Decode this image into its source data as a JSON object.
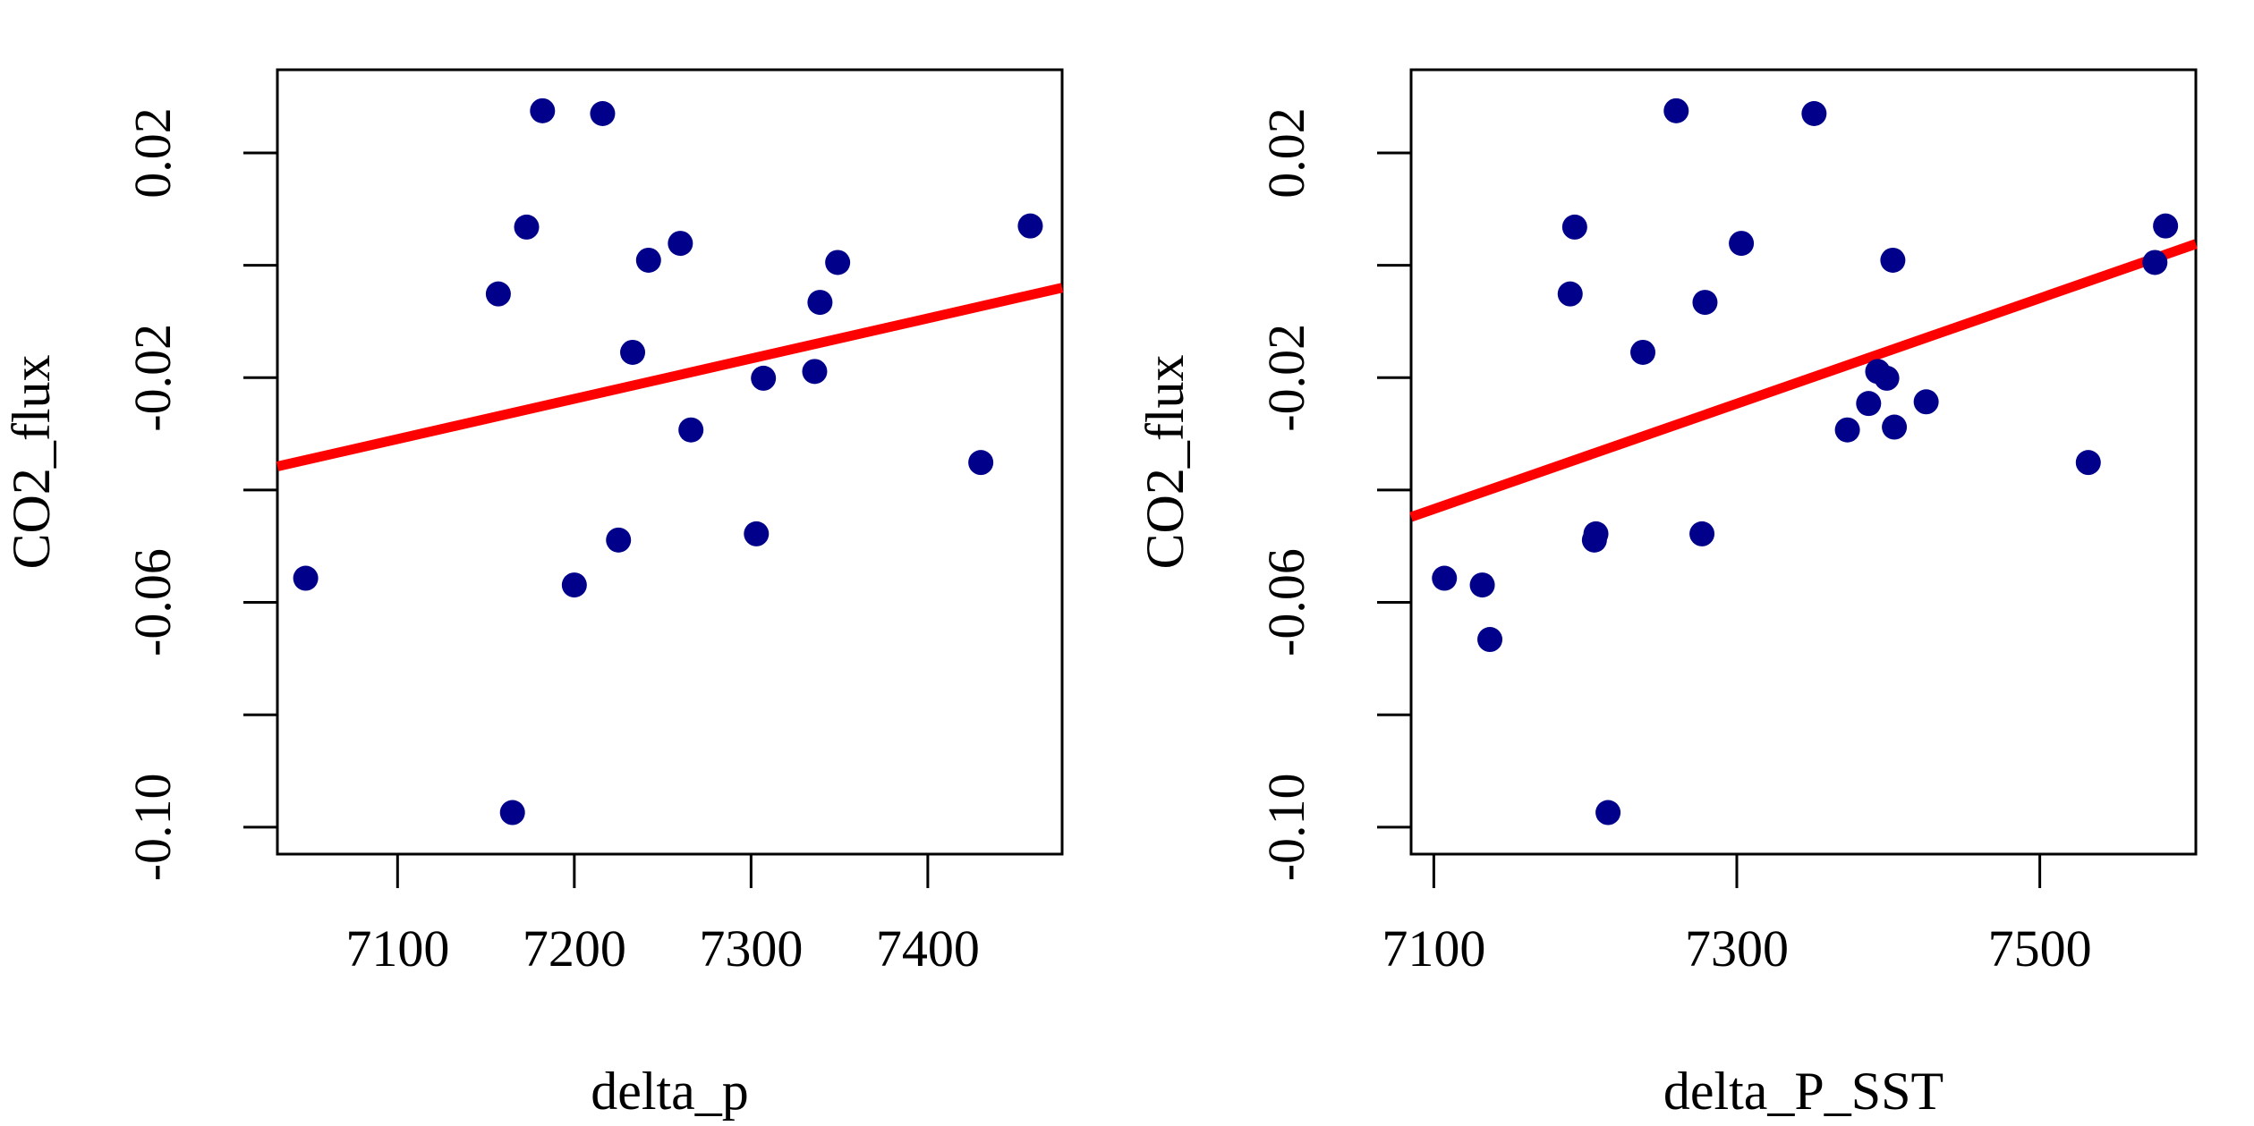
{
  "colors": {
    "points": "#00008B",
    "fit_line": "#FF0000",
    "axes": "#000000",
    "background": "#FFFFFF"
  },
  "chart_data": [
    {
      "type": "scatter",
      "title": "",
      "xlabel": "delta_p",
      "ylabel": "CO2_flux",
      "xlim": [
        7032,
        7476
      ],
      "ylim": [
        -0.1048,
        0.0348
      ],
      "x_ticks": [
        7100,
        7200,
        7300,
        7400
      ],
      "x_tick_labels": [
        "7100",
        "7200",
        "7300",
        "7400"
      ],
      "y_ticks": [
        -0.1,
        -0.08,
        -0.06,
        -0.04,
        -0.02,
        0.0,
        0.02
      ],
      "y_tick_labels": [
        "-0.10",
        "",
        "-0.06",
        "",
        "-0.02",
        "",
        "0.02"
      ],
      "grid": false,
      "legend": "none",
      "points": [
        {
          "x": 7048,
          "y": -0.0557
        },
        {
          "x": 7157,
          "y": -0.0051
        },
        {
          "x": 7165,
          "y": -0.0974
        },
        {
          "x": 7173,
          "y": 0.0068
        },
        {
          "x": 7182,
          "y": 0.0275
        },
        {
          "x": 7200,
          "y": -0.0569
        },
        {
          "x": 7216,
          "y": 0.027
        },
        {
          "x": 7225,
          "y": -0.0489
        },
        {
          "x": 7233,
          "y": -0.0155
        },
        {
          "x": 7242,
          "y": 0.0009
        },
        {
          "x": 7260,
          "y": 0.0039
        },
        {
          "x": 7266,
          "y": -0.0293
        },
        {
          "x": 7303,
          "y": -0.0478
        },
        {
          "x": 7307,
          "y": -0.0201
        },
        {
          "x": 7336,
          "y": -0.0189
        },
        {
          "x": 7339,
          "y": -0.0066
        },
        {
          "x": 7349,
          "y": 0.0005
        },
        {
          "x": 7430,
          "y": -0.0351
        },
        {
          "x": 7458,
          "y": 0.007
        }
      ],
      "fit_line": {
        "x": [
          7032,
          7476
        ],
        "y": [
          -0.0358,
          -0.004
        ]
      }
    },
    {
      "type": "scatter",
      "title": "",
      "xlabel": "delta_P_SST",
      "ylabel": "CO2_flux",
      "xlim": [
        7085,
        7603
      ],
      "ylim": [
        -0.1048,
        0.0348
      ],
      "x_ticks": [
        7100,
        7300,
        7500
      ],
      "x_tick_labels": [
        "7100",
        "7300",
        "7500"
      ],
      "y_ticks": [
        -0.1,
        -0.08,
        -0.06,
        -0.04,
        -0.02,
        0.0,
        0.02
      ],
      "y_tick_labels": [
        "-0.10",
        "",
        "-0.06",
        "",
        "-0.02",
        "",
        "0.02"
      ],
      "grid": false,
      "legend": "none",
      "points": [
        {
          "x": 7107,
          "y": -0.0557
        },
        {
          "x": 7132,
          "y": -0.0569
        },
        {
          "x": 7137,
          "y": -0.0666
        },
        {
          "x": 7190,
          "y": -0.0051
        },
        {
          "x": 7193,
          "y": 0.0068
        },
        {
          "x": 7206,
          "y": -0.0489
        },
        {
          "x": 7207,
          "y": -0.0478
        },
        {
          "x": 7215,
          "y": -0.0974
        },
        {
          "x": 7238,
          "y": -0.0155
        },
        {
          "x": 7260,
          "y": 0.0275
        },
        {
          "x": 7277,
          "y": -0.0478
        },
        {
          "x": 7279,
          "y": -0.0066
        },
        {
          "x": 7303,
          "y": 0.0039
        },
        {
          "x": 7351,
          "y": 0.027
        },
        {
          "x": 7373,
          "y": -0.0293
        },
        {
          "x": 7387,
          "y": -0.0246
        },
        {
          "x": 7393,
          "y": -0.0189
        },
        {
          "x": 7399,
          "y": -0.0201
        },
        {
          "x": 7403,
          "y": 0.0009
        },
        {
          "x": 7404,
          "y": -0.0288
        },
        {
          "x": 7425,
          "y": -0.0243
        },
        {
          "x": 7532,
          "y": -0.0351
        },
        {
          "x": 7576,
          "y": 0.0005
        },
        {
          "x": 7583,
          "y": 0.007
        }
      ],
      "fit_line": {
        "x": [
          7085,
          7603
        ],
        "y": [
          -0.0448,
          0.0038
        ]
      }
    }
  ]
}
